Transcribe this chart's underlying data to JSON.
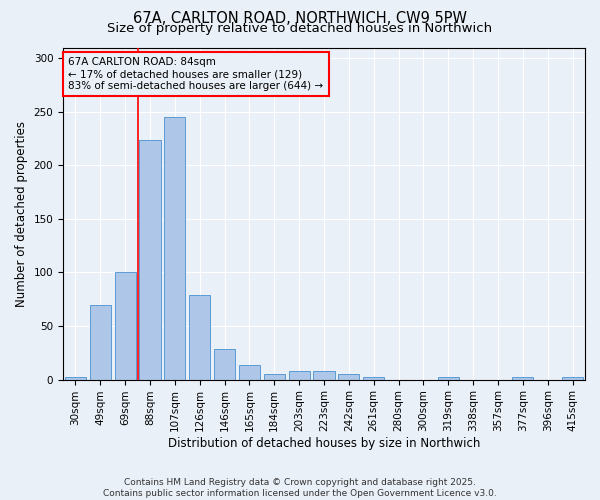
{
  "title": "67A, CARLTON ROAD, NORTHWICH, CW9 5PW",
  "subtitle": "Size of property relative to detached houses in Northwich",
  "xlabel": "Distribution of detached houses by size in Northwich",
  "ylabel": "Number of detached properties",
  "categories": [
    "30sqm",
    "49sqm",
    "69sqm",
    "88sqm",
    "107sqm",
    "126sqm",
    "146sqm",
    "165sqm",
    "184sqm",
    "203sqm",
    "223sqm",
    "242sqm",
    "261sqm",
    "280sqm",
    "300sqm",
    "319sqm",
    "338sqm",
    "357sqm",
    "377sqm",
    "396sqm",
    "415sqm"
  ],
  "values": [
    2,
    70,
    100,
    224,
    245,
    79,
    29,
    14,
    5,
    8,
    8,
    5,
    2,
    0,
    0,
    2,
    0,
    0,
    2,
    0,
    2
  ],
  "bar_color": "#aec6e8",
  "bar_edge_color": "#5b9bd5",
  "red_line_index": 3,
  "annotation_line1": "67A CARLTON ROAD: 84sqm",
  "annotation_line2": "← 17% of detached houses are smaller (129)",
  "annotation_line3": "83% of semi-detached houses are larger (644) →",
  "annotation_box_color": "red",
  "ylim": [
    0,
    310
  ],
  "yticks": [
    0,
    50,
    100,
    150,
    200,
    250,
    300
  ],
  "bg_color": "#eaf0f8",
  "footer": "Contains HM Land Registry data © Crown copyright and database right 2025.\nContains public sector information licensed under the Open Government Licence v3.0.",
  "title_fontsize": 10.5,
  "subtitle_fontsize": 9.5,
  "axis_label_fontsize": 8.5,
  "tick_fontsize": 7.5,
  "footer_fontsize": 6.5,
  "annotation_fontsize": 7.5
}
